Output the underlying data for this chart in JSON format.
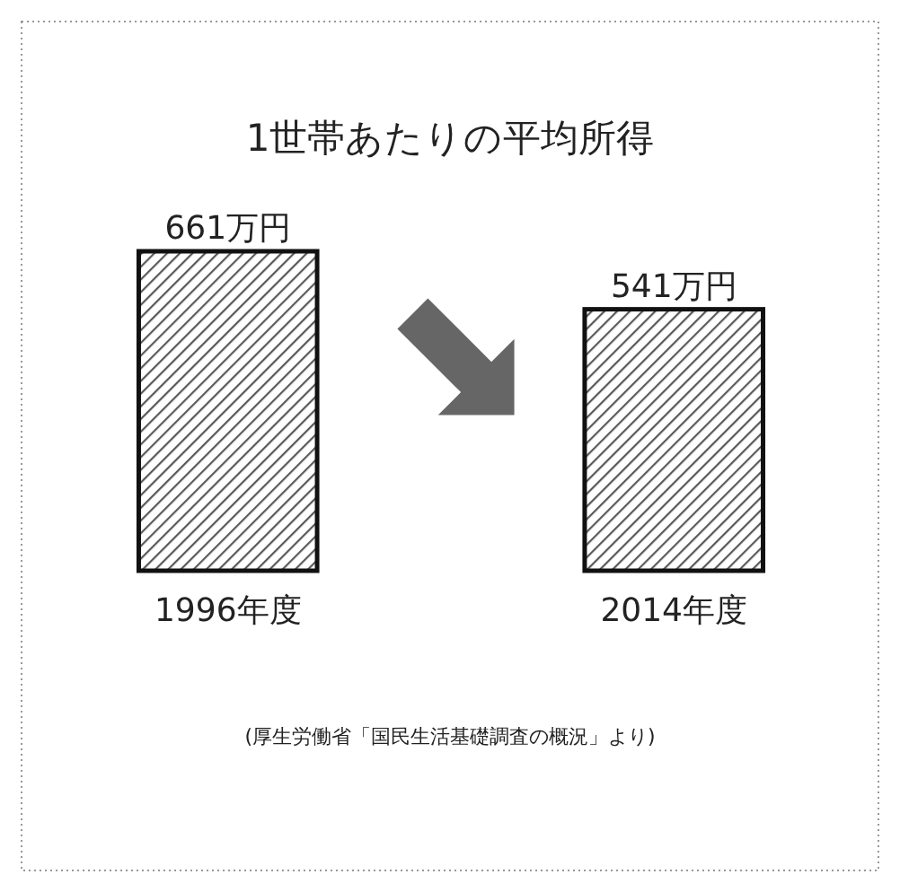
{
  "chart_data": {
    "type": "bar",
    "title": "1世帯あたりの平均所得",
    "categories": [
      "1996年度",
      "2014年度"
    ],
    "values": [
      661,
      541
    ],
    "value_labels": [
      "661万円",
      "541万円"
    ],
    "color": "#111111",
    "annotations": [
      "(厚生労働省「国民生活基礎調査の概況」より)"
    ]
  }
}
